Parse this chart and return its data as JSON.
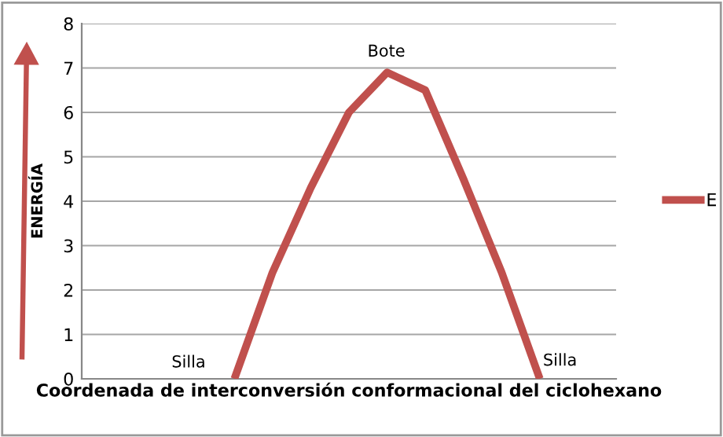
{
  "chart_data": {
    "type": "line",
    "xlabel": "Coordenada de interconversión conformacional del ciclohexano",
    "ylabel": "ENERGÍA",
    "categories": [
      null,
      null,
      null,
      null,
      null,
      null,
      null,
      null,
      null,
      null,
      null,
      null,
      null,
      null,
      null
    ],
    "ylim": [
      0,
      8
    ],
    "yticks": [
      0,
      1,
      2,
      3,
      4,
      5,
      6,
      7,
      8
    ],
    "tick_labels": "y",
    "grid": "y",
    "legend": "right",
    "line_style": "solid",
    "marker": "none",
    "series": [
      {
        "name": "E",
        "color": "#c0504d",
        "values": [
          null,
          null,
          null,
          null,
          0,
          2.4,
          4.3,
          6.0,
          6.9,
          6.5,
          4.5,
          2.4,
          0,
          null,
          null
        ]
      }
    ],
    "annotations": [
      "Silla",
      "Bote",
      "Silla"
    ]
  }
}
